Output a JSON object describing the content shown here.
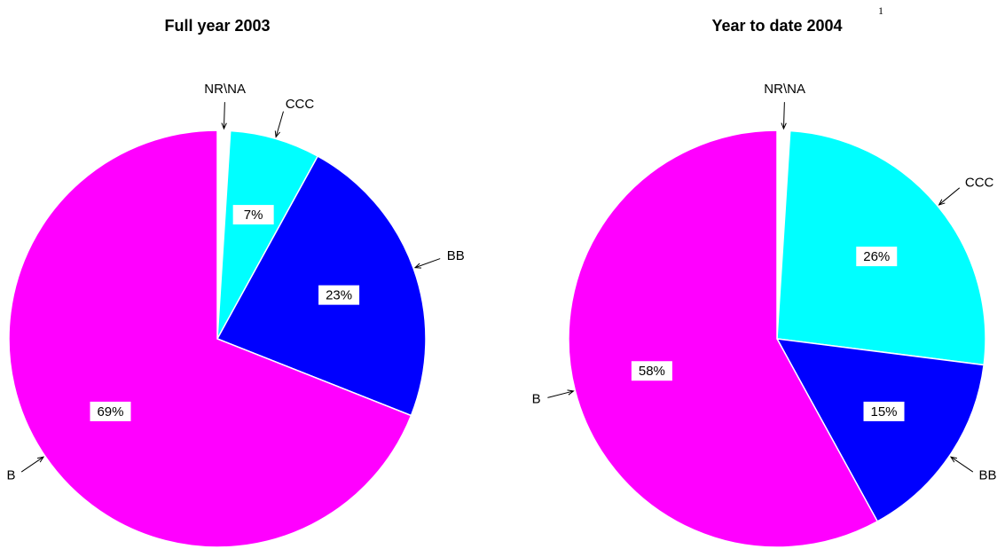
{
  "chart_data": [
    {
      "type": "pie",
      "title": "Full year 2003",
      "categories": [
        "NR\\NA",
        "CCC",
        "BB",
        "B"
      ],
      "values": [
        1,
        7,
        23,
        69
      ],
      "value_labels": [
        null,
        "7%",
        "23%",
        "69%"
      ],
      "colors": [
        "#ffffff",
        "#00ffff",
        "#0000ff",
        "#ff00ff"
      ]
    },
    {
      "type": "pie",
      "title": "Year to date 2004",
      "title_note": "1",
      "categories": [
        "NR\\NA",
        "CCC",
        "BB",
        "B"
      ],
      "values": [
        1,
        26,
        15,
        58
      ],
      "value_labels": [
        null,
        "26%",
        "15%",
        "58%"
      ],
      "colors": [
        "#ffffff",
        "#00ffff",
        "#0000ff",
        "#ff00ff"
      ]
    }
  ]
}
